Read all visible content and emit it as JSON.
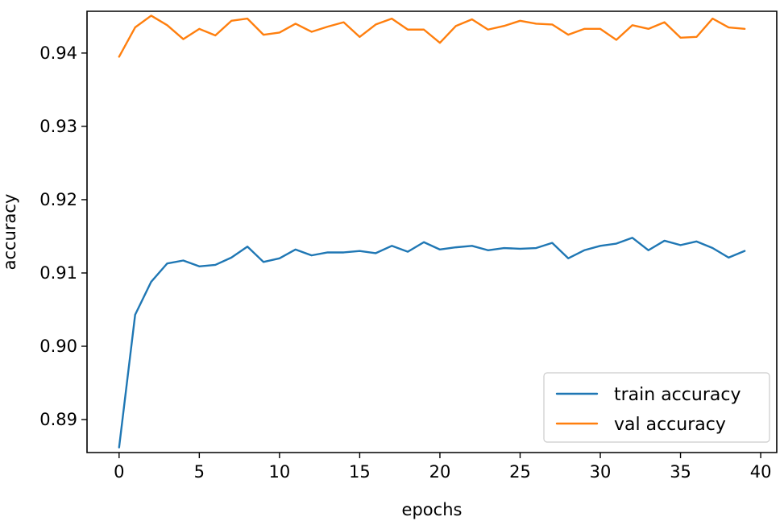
{
  "chart_data": {
    "type": "line",
    "title": "",
    "xlabel": "epochs",
    "ylabel": "accuracy",
    "xlim": [
      -2,
      41
    ],
    "ylim": [
      0.8855,
      0.9457
    ],
    "xticks": [
      0,
      5,
      10,
      15,
      20,
      25,
      30,
      35,
      40
    ],
    "yticks": [
      0.89,
      0.9,
      0.91,
      0.92,
      0.93,
      0.94
    ],
    "ytick_labels": [
      "0.89",
      "0.90",
      "0.91",
      "0.92",
      "0.93",
      "0.94"
    ],
    "grid": false,
    "legend_position": "bottom-right",
    "x": [
      0,
      1,
      2,
      3,
      4,
      5,
      6,
      7,
      8,
      9,
      10,
      11,
      12,
      13,
      14,
      15,
      16,
      17,
      18,
      19,
      20,
      21,
      22,
      23,
      24,
      25,
      26,
      27,
      28,
      29,
      30,
      31,
      32,
      33,
      34,
      35,
      36,
      37,
      38,
      39
    ],
    "series": [
      {
        "name": "train accuracy",
        "color": "#1f77b4",
        "values": [
          0.8862,
          0.9043,
          0.9088,
          0.9113,
          0.9117,
          0.9109,
          0.9111,
          0.9121,
          0.9136,
          0.9115,
          0.912,
          0.9132,
          0.9124,
          0.9128,
          0.9128,
          0.913,
          0.9127,
          0.9137,
          0.9129,
          0.9142,
          0.9132,
          0.9135,
          0.9137,
          0.9131,
          0.9134,
          0.9133,
          0.9134,
          0.9141,
          0.912,
          0.9131,
          0.9137,
          0.914,
          0.9148,
          0.9131,
          0.9144,
          0.9138,
          0.9143,
          0.9134,
          0.9121,
          0.913
        ]
      },
      {
        "name": "val accuracy",
        "color": "#ff7f0e",
        "values": [
          0.9395,
          0.9435,
          0.9451,
          0.9438,
          0.9419,
          0.9433,
          0.9424,
          0.9444,
          0.9447,
          0.9425,
          0.9428,
          0.944,
          0.9429,
          0.9436,
          0.9442,
          0.9422,
          0.9439,
          0.9447,
          0.9432,
          0.9432,
          0.9414,
          0.9437,
          0.9446,
          0.9432,
          0.9437,
          0.9444,
          0.944,
          0.9439,
          0.9425,
          0.9433,
          0.9433,
          0.9418,
          0.9438,
          0.9433,
          0.9442,
          0.9421,
          0.9422,
          0.9447,
          0.9435,
          0.9433
        ]
      }
    ]
  }
}
